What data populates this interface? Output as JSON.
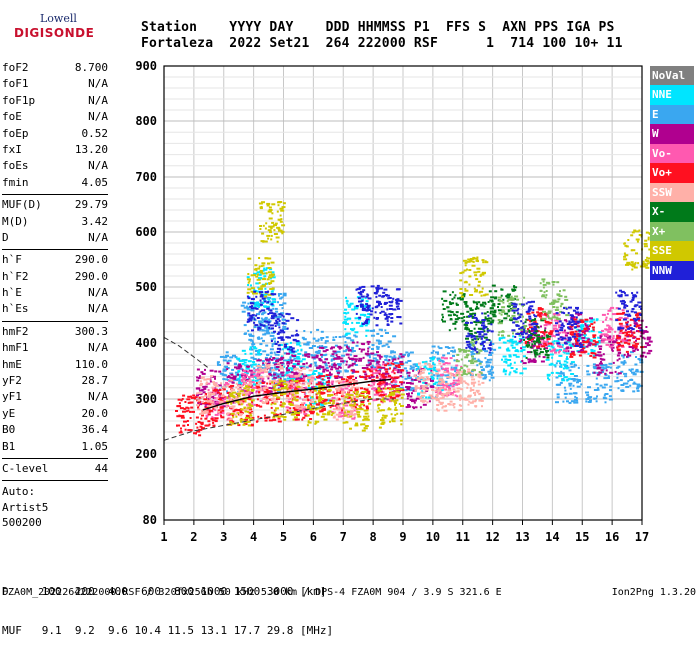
{
  "logo": {
    "top_text": "Lowell",
    "bottom_text": "DIGISONDE"
  },
  "header": {
    "line1": "Station    YYYY DAY    DDD HHMMSS P1  FFS S  AXN PPS IGA PS",
    "line2": "Fortaleza  2022 Set21  264 222000 RSF      1  714 100 10+ 11"
  },
  "params": {
    "group1": [
      {
        "label": "foF2",
        "value": "8.700"
      },
      {
        "label": "foF1",
        "value": "N/A"
      },
      {
        "label": "foF1p",
        "value": "N/A"
      },
      {
        "label": "foE",
        "value": "N/A"
      },
      {
        "label": "foEp",
        "value": "0.52"
      },
      {
        "label": "fxI",
        "value": "13.20"
      },
      {
        "label": "foEs",
        "value": "N/A"
      },
      {
        "label": "fmin",
        "value": "4.05"
      }
    ],
    "group2": [
      {
        "label": "MUF(D)",
        "value": "29.79"
      },
      {
        "label": "M(D)",
        "value": "3.42"
      },
      {
        "label": "D",
        "value": "N/A"
      }
    ],
    "group3": [
      {
        "label": "h`F",
        "value": "290.0"
      },
      {
        "label": "h`F2",
        "value": "290.0"
      },
      {
        "label": "h`E",
        "value": "N/A"
      },
      {
        "label": "h`Es",
        "value": "N/A"
      }
    ],
    "group4": [
      {
        "label": "hmF2",
        "value": "300.3"
      },
      {
        "label": "hmF1",
        "value": "N/A"
      },
      {
        "label": "hmE",
        "value": "110.0"
      },
      {
        "label": "yF2",
        "value": "28.7"
      },
      {
        "label": "yF1",
        "value": "N/A"
      },
      {
        "label": "yE",
        "value": "20.0"
      },
      {
        "label": "B0",
        "value": "36.4"
      },
      {
        "label": "B1",
        "value": "1.05"
      }
    ],
    "group5": [
      {
        "label": "C-level",
        "value": "44"
      }
    ]
  },
  "auto": {
    "line1": "Auto:",
    "line2": "Artist5",
    "line3": "500200"
  },
  "legend": [
    {
      "label": "NoVal",
      "color": "#808080"
    },
    {
      "label": "NNE",
      "color": "#00e5ff"
    },
    {
      "label": "E",
      "color": "#3aa7f0"
    },
    {
      "label": "W",
      "color": "#b0008f"
    },
    {
      "label": "Vo-",
      "color": "#ff59b0"
    },
    {
      "label": "Vo+",
      "color": "#ff1020"
    },
    {
      "label": "SSW",
      "color": "#ffb0a8"
    },
    {
      "label": "X-",
      "color": "#007a1a"
    },
    {
      "label": "X+",
      "color": "#80c060"
    },
    {
      "label": "SSE",
      "color": "#d0c800"
    },
    {
      "label": "NNW",
      "color": "#2020d8"
    }
  ],
  "chart_data": {
    "type": "scatter",
    "title": "",
    "xlabel": "",
    "ylabel": "",
    "xlim": [
      1,
      17
    ],
    "ylim": [
      80,
      900
    ],
    "x_ticks": [
      "1",
      "2",
      "3",
      "4",
      "5",
      "6",
      "7",
      "8",
      "9",
      "10",
      "11",
      "12",
      "13",
      "14",
      "15",
      "16",
      "17"
    ],
    "y_ticks": [
      "80",
      "200",
      "300",
      "400",
      "500",
      "600",
      "700",
      "800",
      "900"
    ],
    "y_scale": "nonlinear",
    "grid": true,
    "profile_series": [
      {
        "name": "",
        "x": [
          1.0,
          2.0,
          3.0,
          4.0,
          5.0,
          6.0,
          7.0,
          8.0,
          8.7
        ],
        "y": [
          225,
          242,
          252,
          262,
          272,
          283,
          292,
          300,
          300
        ]
      },
      {
        "name": "",
        "x": [
          1.0,
          1.5,
          2.0,
          2.5
        ],
        "y": [
          410,
          395,
          375,
          355
        ]
      },
      {
        "name": "",
        "x": [
          2.3,
          3.0,
          4.0,
          5.0,
          6.0,
          7.0,
          8.0,
          8.6
        ],
        "y": [
          280,
          292,
          305,
          312,
          318,
          325,
          332,
          335
        ]
      }
    ],
    "echo_clusters": [
      {
        "name": "E",
        "x": [
          3.2,
          4.0,
          4.3,
          4.6,
          5.0,
          6.0,
          7.0,
          8.2,
          9.0,
          10.3,
          11.6,
          14.5,
          15.5,
          16.5
        ],
        "y": [
          350,
          440,
          380,
          455,
          350,
          390,
          380,
          390,
          350,
          360,
          370,
          330,
          330,
          350
        ]
      },
      {
        "name": "NNE",
        "x": [
          3.8,
          4.2,
          5.2,
          6.1,
          7.4,
          9.8,
          12.6,
          14.2,
          15.1
        ],
        "y": [
          360,
          500,
          370,
          320,
          450,
          340,
          380,
          370,
          410
        ]
      },
      {
        "name": "W",
        "x": [
          2.5,
          3.5,
          4.5,
          5.5,
          6.5,
          7.5,
          8.5,
          9.5,
          13.3,
          14.8,
          15.8,
          16.8
        ],
        "y": [
          320,
          330,
          340,
          350,
          360,
          370,
          350,
          320,
          400,
          420,
          380,
          410
        ]
      },
      {
        "name": "Vo-",
        "x": [
          2.8,
          4.0,
          5.5,
          7.0,
          8.3,
          10.5,
          14.0,
          16.0
        ],
        "y": [
          300,
          320,
          310,
          300,
          330,
          340,
          420,
          430
        ]
      },
      {
        "name": "Vo+",
        "x": [
          1.8,
          2.5,
          3.5,
          4.5,
          5.5,
          6.5,
          7.5,
          8.5,
          13.5,
          15.0,
          16.5
        ],
        "y": [
          272,
          285,
          290,
          295,
          300,
          310,
          320,
          330,
          430,
          410,
          420
        ]
      },
      {
        "name": "SSW",
        "x": [
          2.5,
          3.5,
          4.5,
          5.5,
          7.0,
          9.8,
          10.5,
          11.2
        ],
        "y": [
          310,
          300,
          330,
          320,
          300,
          330,
          315,
          320
        ]
      },
      {
        "name": "X-",
        "x": [
          10.7,
          11.5,
          12.3,
          13.4
        ],
        "y": [
          460,
          440,
          470,
          410
        ]
      },
      {
        "name": "X+",
        "x": [
          11.2,
          12.6,
          14.0
        ],
        "y": [
          380,
          450,
          480
        ]
      },
      {
        "name": "SSE",
        "x": [
          3.5,
          4.2,
          4.6,
          5.0,
          6.2,
          7.4,
          8.5,
          11.3,
          16.8
        ],
        "y": [
          290,
          520,
          620,
          300,
          290,
          280,
          285,
          520,
          570
        ]
      },
      {
        "name": "NNW",
        "x": [
          4.2,
          5.0,
          7.8,
          8.5,
          11.5,
          13.0,
          14.5,
          16.5
        ],
        "y": [
          460,
          420,
          470,
          465,
          420,
          440,
          430,
          460
        ]
      }
    ]
  },
  "footer": {
    "line1": "D     100  200  400  600  800 1000 1500 3000 [km]",
    "line2": "MUF   9.1  9.2  9.6 10.4 11.5 13.1 17.7 29.8 [MHz]",
    "file_line": "FZA0M_2022264222000.RSF / 320fx256h 50 kHz 5.0 km / DPS-4 FZA0M 904 / 3.9 S 321.6 E",
    "version": "Ion2Png 1.3.20"
  }
}
